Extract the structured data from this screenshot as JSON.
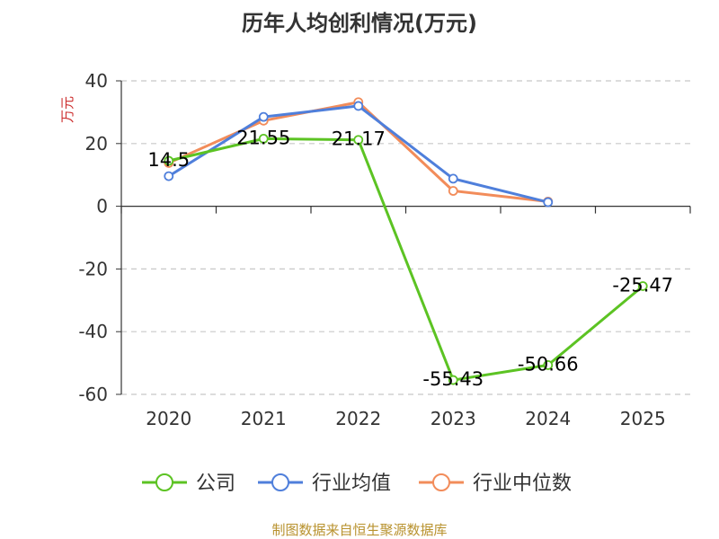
{
  "chart_data": {
    "type": "line",
    "title": "历年人均创利情况(万元)",
    "ylabel": "万元",
    "categories": [
      "2020",
      "2021",
      "2022",
      "2023",
      "2024",
      "2025"
    ],
    "ylim": [
      -60,
      40
    ],
    "yticks": [
      40,
      20,
      0,
      -20,
      -40,
      -60
    ],
    "grid": true,
    "legend_position": "bottom",
    "series": [
      {
        "name": "公司",
        "color": "#5cc323",
        "values": [
          14.5,
          21.55,
          21.17,
          -55.43,
          -50.66,
          -25.47
        ],
        "labels": [
          "14.5",
          "21.55",
          "21.17",
          "-55.43",
          "-50.66",
          "-25.47"
        ]
      },
      {
        "name": "行业均值",
        "color": "#4f7fdb",
        "values": [
          9.6,
          28.5,
          32.0,
          8.8,
          1.3,
          null
        ]
      },
      {
        "name": "行业中位数",
        "color": "#f28c5a",
        "values": [
          13.8,
          27.3,
          33.2,
          4.9,
          1.5,
          null
        ]
      }
    ]
  },
  "source": "制图数据来自恒生聚源数据库"
}
